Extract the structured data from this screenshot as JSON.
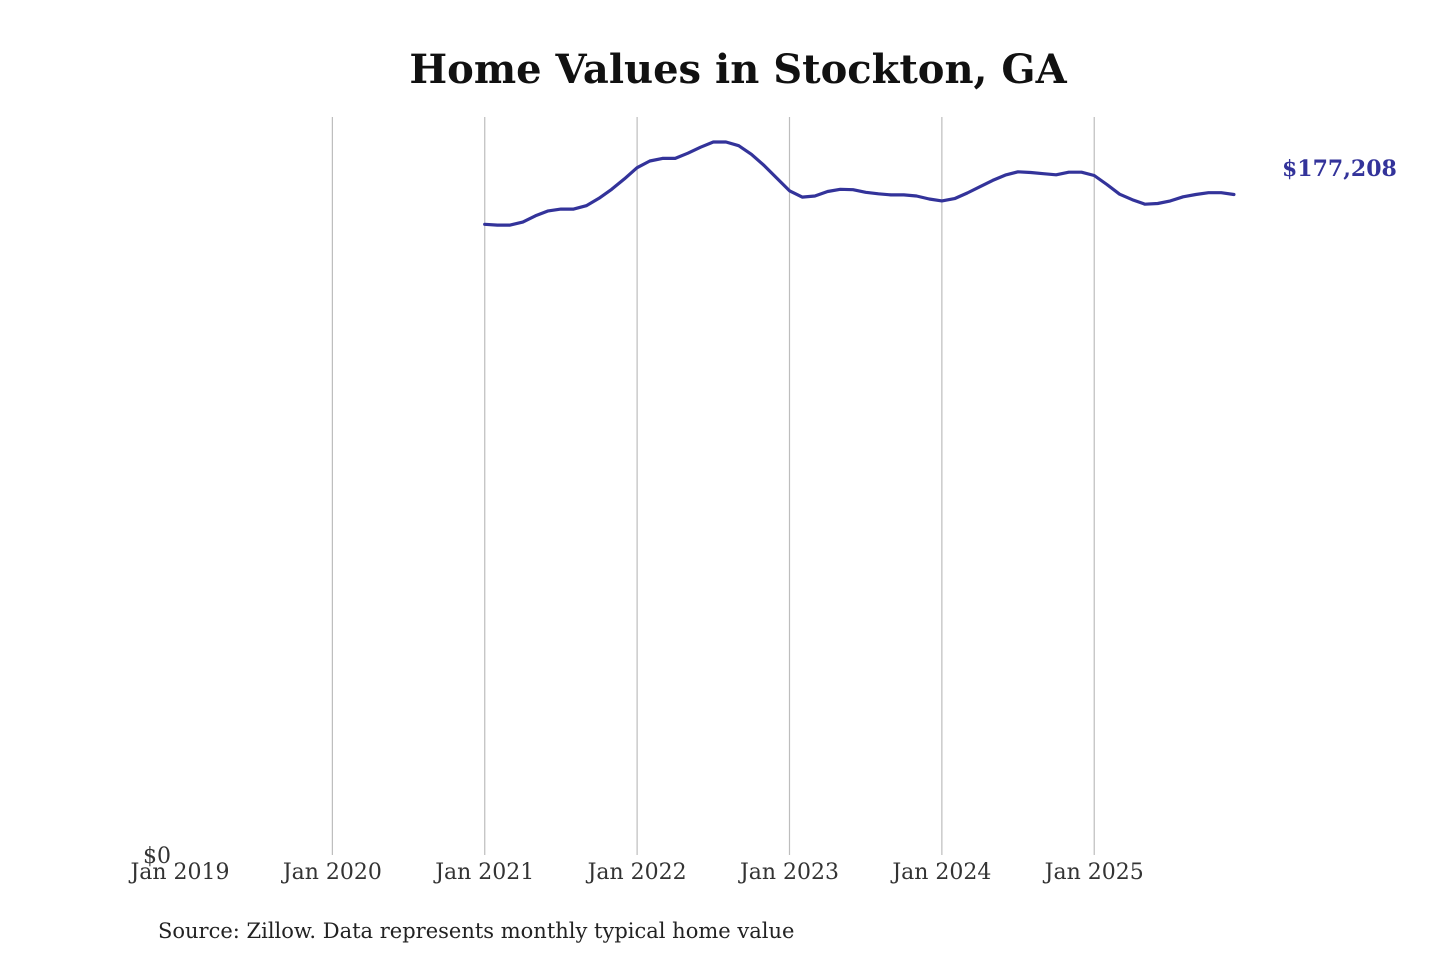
{
  "chart_data": {
    "type": "line",
    "title": "Home Values in Stockton, GA",
    "xlabel": "",
    "ylabel": "",
    "x_ticks": [
      "Jan 2019",
      "Jan 2020",
      "Jan 2021",
      "Jan 2022",
      "Jan 2023",
      "Jan 2024",
      "Jan 2025"
    ],
    "y_ticks": [
      "$0"
    ],
    "ylim": [
      0,
      198000
    ],
    "xlim": [
      "2019-01",
      "2026-03"
    ],
    "grid": "vertical",
    "legend": "none",
    "end_label": "$177,208",
    "series_color": "#33339a",
    "series": [
      {
        "x": [
          "2021-01",
          "2021-02",
          "2021-03",
          "2021-04",
          "2021-05",
          "2021-06",
          "2021-07",
          "2021-08",
          "2021-09",
          "2021-10",
          "2021-11",
          "2021-12",
          "2022-01",
          "2022-02",
          "2022-03",
          "2022-04",
          "2022-05",
          "2022-06",
          "2022-07",
          "2022-08",
          "2022-09",
          "2022-10",
          "2022-11",
          "2022-12",
          "2023-01",
          "2023-02",
          "2023-03",
          "2023-04",
          "2023-05",
          "2023-06",
          "2023-07",
          "2023-08",
          "2023-09",
          "2023-10",
          "2023-11",
          "2023-12",
          "2024-01",
          "2024-02",
          "2024-03",
          "2024-04",
          "2024-05",
          "2024-06",
          "2024-07",
          "2024-08",
          "2024-09",
          "2024-10",
          "2024-11",
          "2024-12",
          "2025-01",
          "2025-02",
          "2025-03",
          "2025-04",
          "2025-05",
          "2025-06",
          "2025-07",
          "2025-08",
          "2025-09",
          "2025-10",
          "2025-11",
          "2025-12"
        ],
        "values": [
          169200,
          169000,
          169000,
          169800,
          171500,
          172800,
          173300,
          173300,
          174200,
          176200,
          178600,
          181400,
          184400,
          186200,
          186900,
          186900,
          188300,
          189900,
          191300,
          191300,
          190300,
          188000,
          185000,
          181600,
          178200,
          176500,
          176800,
          178000,
          178600,
          178500,
          177800,
          177400,
          177100,
          177100,
          176800,
          176000,
          175500,
          176100,
          177600,
          179300,
          181000,
          182400,
          183300,
          183100,
          182800,
          182500,
          183200,
          183200,
          182300,
          179900,
          177300,
          175800,
          174600,
          174800,
          175500,
          176600,
          177200,
          177700,
          177700,
          177208
        ]
      }
    ]
  },
  "source_note": "Source: Zillow. Data represents monthly typical home value"
}
